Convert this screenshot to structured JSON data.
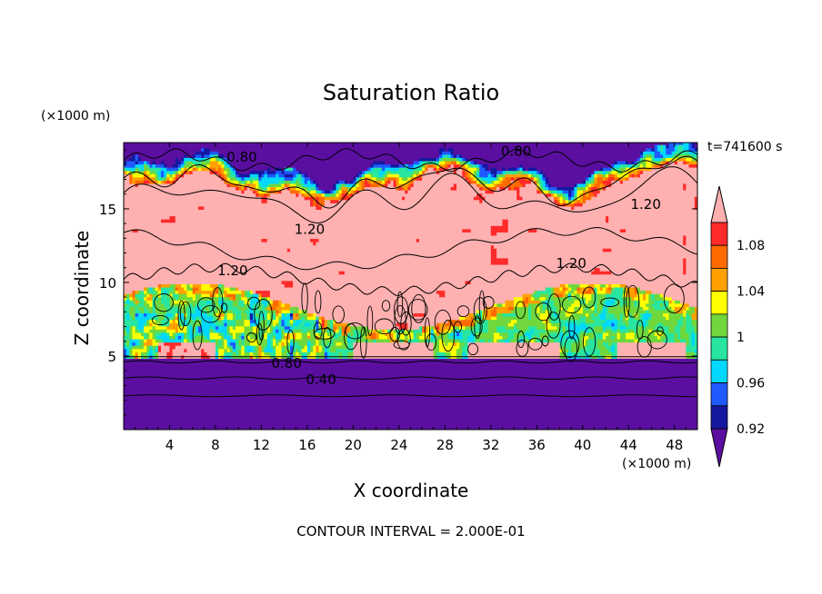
{
  "chart_data": {
    "type": "heatmap",
    "title": "Saturation Ratio",
    "xlabel": "X coordinate",
    "ylabel": "Z coordinate",
    "x_unit": "(×1000 m)",
    "z_unit": "(×1000 m)",
    "time_label": "t=741600 s",
    "footer": "CONTOUR INTERVAL = 2.000E-01",
    "xlim": [
      0,
      50
    ],
    "ylim": [
      0,
      19.5
    ],
    "x_ticks": [
      4,
      8,
      12,
      16,
      20,
      24,
      28,
      32,
      36,
      40,
      44,
      48
    ],
    "y_ticks": [
      5,
      10,
      15
    ],
    "colorbar": {
      "labels": [
        "0.92",
        "0.96",
        "1",
        "1.04",
        "1.08"
      ],
      "levels": [
        0.92,
        0.94,
        0.96,
        0.98,
        1.0,
        1.02,
        1.04,
        1.06,
        1.08,
        1.1
      ],
      "colors": [
        "#5a0fa0",
        "#1418a0",
        "#1e5aff",
        "#00d8ff",
        "#28e6a0",
        "#70d83c",
        "#ffff00",
        "#ffa000",
        "#ff6a00",
        "#ff2a2a",
        "#ffb0b0"
      ]
    },
    "contour_labels": [
      {
        "text": "0.80",
        "x": 10.3,
        "z": 18.5
      },
      {
        "text": "0.80",
        "x": 34.2,
        "z": 18.9
      },
      {
        "text": "1.20",
        "x": 16.2,
        "z": 13.6
      },
      {
        "text": "1.20",
        "x": 45.5,
        "z": 15.3
      },
      {
        "text": "1.20",
        "x": 9.5,
        "z": 10.8
      },
      {
        "text": "1.20",
        "x": 39.0,
        "z": 11.3
      },
      {
        "text": "0.80",
        "x": 14.2,
        "z": 4.5
      },
      {
        "text": "0.40",
        "x": 17.2,
        "z": 3.4
      }
    ]
  }
}
